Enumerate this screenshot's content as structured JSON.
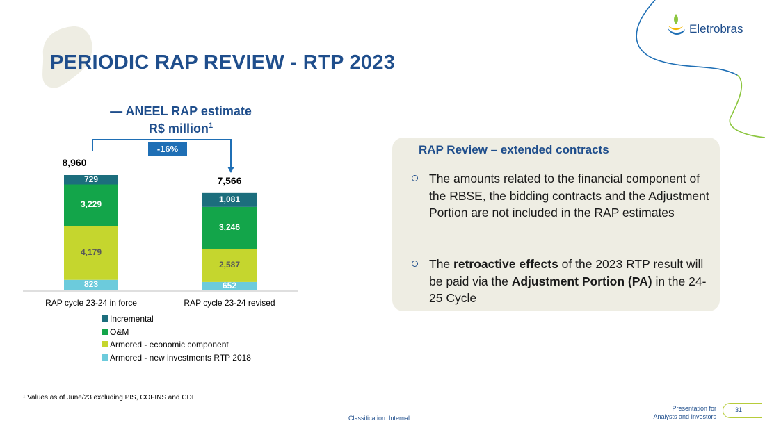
{
  "header": {
    "title": "PERIODIC RAP REVIEW - RTP 2023",
    "logo_text": "Eletrobras"
  },
  "chart_data": {
    "type": "bar",
    "stacked": true,
    "title_line1": "— ANEEL RAP estimate",
    "title_line2": "R$ million",
    "title_footnote_mark": "1",
    "categories": [
      "RAP cycle 23-24 in force",
      "RAP cycle 23-24 revised"
    ],
    "series": [
      {
        "name": "Armored - new investments RTP 2018",
        "values": [
          823,
          652
        ],
        "color": "#6ccbdc",
        "label_color": "#ffffff"
      },
      {
        "name": "Armored - economic component",
        "values": [
          4179,
          2587
        ],
        "color": "#c5d62e",
        "label_color": "#595959"
      },
      {
        "name": "O&M",
        "values": [
          3229,
          3246
        ],
        "color": "#13a54a",
        "label_color": "#ffffff"
      },
      {
        "name": "Incremental",
        "values": [
          729,
          1081
        ],
        "color": "#1c6e7d",
        "label_color": "#ffffff"
      }
    ],
    "segment_labels": [
      [
        "823",
        "4,179",
        "3,229",
        "729"
      ],
      [
        "652",
        "2,587",
        "3,246",
        "1,081"
      ]
    ],
    "totals": [
      8960,
      7566
    ],
    "total_labels": [
      "8,960",
      "7,566"
    ],
    "change_label": "-16%",
    "legend_order": [
      "Incremental",
      "O&M",
      "Armored - economic component",
      "Armored - new investments RTP 2018"
    ],
    "legend_placement": "bottom",
    "grid": false
  },
  "review": {
    "title": "RAP Review – extended contracts",
    "bullet1": "The amounts related to the financial component of the RBSE, the bidding contracts and the Adjustment Portion are not included in the RAP estimates",
    "bullet2_part1": "The ",
    "bullet2_bold1": "retroactive effects",
    "bullet2_part2": " of the 2023 RTP result will be paid via the ",
    "bullet2_bold2": "Adjustment Portion (PA)",
    "bullet2_part3": " in the 24-25 Cycle"
  },
  "footer": {
    "footnote": "¹ Values as of June/23 excluding PIS, COFINS and CDE",
    "classification": "Classification: Internal",
    "presentation_line1": "Presentation for",
    "presentation_line2": "Analysts and Investors",
    "page_number": "31"
  },
  "colors": {
    "brand_blue": "#1f4e8c",
    "accent_green": "#b7cc3a",
    "panel_bg": "#eeede3"
  }
}
